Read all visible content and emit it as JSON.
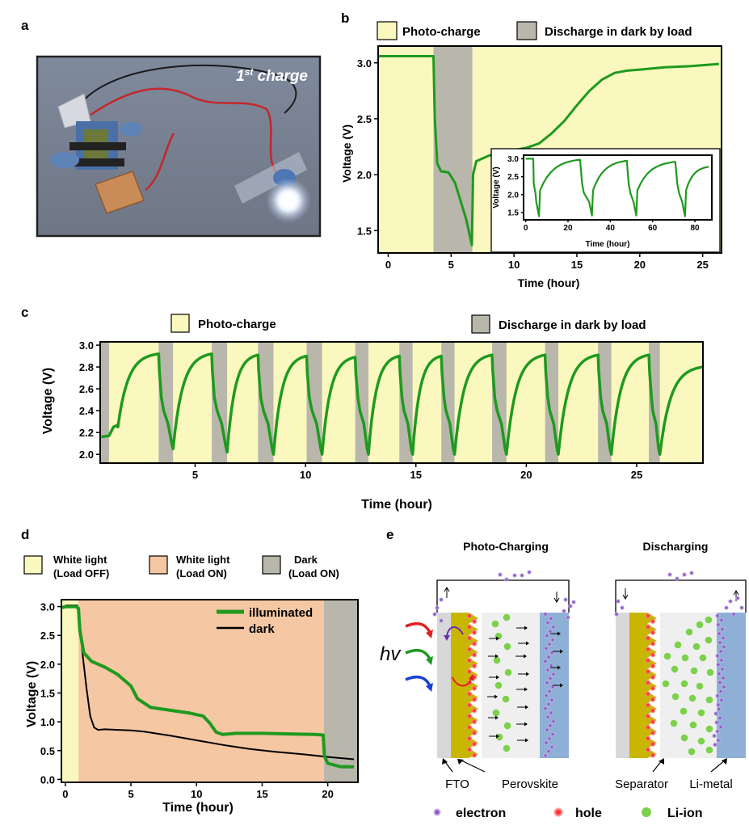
{
  "panel_labels": {
    "a": "a",
    "b": "b",
    "c": "c",
    "d": "d",
    "e": "e"
  },
  "panel_a": {
    "overlay_main": "1",
    "overlay_sup": "st",
    "overlay_rest": " charge"
  },
  "colors": {
    "photo_charge": "#fbf8bf",
    "discharge_dark": "#b9b7ac",
    "white_light_load_on": "#f5c7a3",
    "curve_green": "#1f9a1f",
    "curve_black": "#000000"
  },
  "chart_data": [
    {
      "panel": "b",
      "type": "line",
      "ylabel": "Voltage (V)",
      "xlabel": "Time (hour)",
      "xlim": [
        -0.8,
        26.5
      ],
      "ylim": [
        1.3,
        3.15
      ],
      "xticks": [
        0,
        5,
        10,
        15,
        20,
        25
      ],
      "yticks": [
        1.5,
        2.0,
        2.5,
        3.0
      ],
      "legend": [
        "Photo-charge",
        "Discharge in dark by load"
      ],
      "regions": [
        {
          "type": "photo",
          "x0": -0.8,
          "x1": 3.6
        },
        {
          "type": "dark",
          "x0": 3.6,
          "x1": 6.7
        },
        {
          "type": "photo",
          "x0": 6.7,
          "x1": 26.5
        }
      ],
      "series": [
        {
          "x": [
            -0.8,
            0,
            2,
            3.6,
            3.7,
            3.9,
            4.2,
            4.8,
            5.3,
            5.8,
            6.2,
            6.5,
            6.65,
            6.75,
            7,
            8,
            9,
            10,
            11,
            12,
            13,
            14,
            15,
            16,
            17,
            18,
            19,
            20,
            22,
            24,
            26.3
          ],
          "y": [
            3.06,
            3.06,
            3.06,
            3.06,
            2.5,
            2.1,
            2.03,
            2.02,
            1.93,
            1.75,
            1.6,
            1.45,
            1.37,
            2.0,
            2.12,
            2.17,
            2.2,
            2.22,
            2.24,
            2.28,
            2.37,
            2.48,
            2.62,
            2.75,
            2.85,
            2.91,
            2.93,
            2.94,
            2.96,
            2.97,
            2.99
          ]
        }
      ],
      "inset": {
        "xlabel": "Time (hour)",
        "ylabel": "Voltage (V)",
        "xlim": [
          -1,
          88
        ],
        "ylim": [
          1.3,
          3.1
        ],
        "xticks": [
          0,
          20,
          40,
          60,
          80
        ],
        "yticks": [
          1.5,
          2.0,
          2.5,
          3.0
        ],
        "cycles": [
          {
            "charge_start": 6.5,
            "charge_end": 26.5,
            "v_start": 1.4,
            "v_end": 2.98
          },
          {
            "charge_start": 31.5,
            "charge_end": 48.5,
            "v_start": 1.42,
            "v_end": 2.95
          },
          {
            "charge_start": 52.5,
            "charge_end": 71.5,
            "v_start": 1.42,
            "v_end": 2.92
          },
          {
            "charge_start": 75.5,
            "charge_end": 87,
            "v_start": 1.4,
            "v_end": 2.78
          }
        ]
      }
    },
    {
      "panel": "c",
      "type": "line",
      "ylabel": "Voltage (V)",
      "xlabel": "Time (hour)",
      "xlim": [
        0.7,
        28
      ],
      "ylim": [
        1.92,
        3.03
      ],
      "xticks": [
        5,
        10,
        15,
        20,
        25
      ],
      "yticks": [
        2.0,
        2.2,
        2.4,
        2.6,
        2.8,
        3.0
      ],
      "legend": [
        "Photo-charge",
        "Discharge in dark by load"
      ],
      "dark_intervals": [
        [
          0.7,
          1.1
        ],
        [
          3.35,
          4.0
        ],
        [
          5.75,
          6.45
        ],
        [
          7.85,
          8.55
        ],
        [
          10.05,
          10.75
        ],
        [
          12.25,
          12.85
        ],
        [
          14.25,
          14.85
        ],
        [
          16.15,
          16.75
        ],
        [
          18.45,
          19.1
        ],
        [
          20.85,
          21.45
        ],
        [
          23.25,
          23.85
        ],
        [
          25.55,
          26.05
        ]
      ],
      "cycles": [
        {
          "s": 1.1,
          "e": 3.35,
          "v0": 2.17,
          "v1": 2.92
        },
        {
          "s": 4.0,
          "e": 5.75,
          "v0": 2.05,
          "v1": 2.92
        },
        {
          "s": 6.45,
          "e": 7.85,
          "v0": 2.02,
          "v1": 2.91
        },
        {
          "s": 8.55,
          "e": 10.05,
          "v0": 2.0,
          "v1": 2.9
        },
        {
          "s": 10.75,
          "e": 12.25,
          "v0": 2.0,
          "v1": 2.89
        },
        {
          "s": 12.85,
          "e": 14.25,
          "v0": 2.0,
          "v1": 2.9
        },
        {
          "s": 14.85,
          "e": 16.15,
          "v0": 2.0,
          "v1": 2.9
        },
        {
          "s": 16.75,
          "e": 18.45,
          "v0": 2.0,
          "v1": 2.91
        },
        {
          "s": 19.1,
          "e": 20.85,
          "v0": 2.0,
          "v1": 2.91
        },
        {
          "s": 21.45,
          "e": 23.25,
          "v0": 2.0,
          "v1": 2.91
        },
        {
          "s": 23.85,
          "e": 25.55,
          "v0": 2.0,
          "v1": 2.91
        },
        {
          "s": 26.05,
          "e": 28.0,
          "v0": 2.0,
          "v1": 2.8
        }
      ]
    },
    {
      "panel": "d",
      "type": "line",
      "ylabel": "Voltage (V)",
      "xlabel": "Time (hour)",
      "xlim": [
        -0.3,
        22.3
      ],
      "ylim": [
        -0.05,
        3.12
      ],
      "xticks": [
        0,
        5,
        10,
        15,
        20
      ],
      "yticks": [
        0.0,
        0.5,
        1.0,
        1.5,
        2.0,
        2.5,
        3.0
      ],
      "legend_regions": [
        {
          "line1": "White light",
          "line2": "(Load OFF)"
        },
        {
          "line1": "White light",
          "line2": "(Load ON)"
        },
        {
          "line1": "Dark",
          "line2": "(Load ON)"
        }
      ],
      "regions": [
        {
          "type": "photo",
          "x0": -0.3,
          "x1": 1.0
        },
        {
          "type": "load_on",
          "x0": 1.0,
          "x1": 19.7
        },
        {
          "type": "dark",
          "x0": 19.7,
          "x1": 22.3
        }
      ],
      "series": [
        {
          "name": "illuminated",
          "x": [
            -0.3,
            0,
            0.8,
            1.0,
            1.1,
            1.4,
            2.0,
            3.0,
            4.0,
            4.5,
            5.0,
            5.5,
            6.5,
            8.0,
            9.5,
            10.5,
            11.0,
            11.5,
            12.0,
            13.0,
            15.0,
            17.0,
            19.0,
            19.65,
            19.75,
            20.0,
            21.0,
            22.0
          ],
          "y": [
            2.98,
            3.0,
            3.0,
            2.97,
            2.6,
            2.2,
            2.05,
            1.95,
            1.82,
            1.72,
            1.62,
            1.4,
            1.25,
            1.2,
            1.15,
            1.1,
            0.98,
            0.82,
            0.78,
            0.8,
            0.8,
            0.79,
            0.78,
            0.77,
            0.4,
            0.28,
            0.22,
            0.22
          ]
        },
        {
          "name": "dark",
          "x": [
            0,
            0.9,
            1.05,
            1.3,
            1.6,
            1.9,
            2.2,
            2.5,
            3.0,
            4.0,
            5.0,
            6.0,
            8.0,
            10.0,
            12.0,
            14.0,
            16.0,
            18.0,
            20.0,
            22.0
          ],
          "y": [
            3.02,
            3.02,
            2.9,
            2.2,
            1.6,
            1.1,
            0.9,
            0.86,
            0.87,
            0.86,
            0.85,
            0.83,
            0.76,
            0.68,
            0.6,
            0.53,
            0.48,
            0.44,
            0.39,
            0.35
          ]
        }
      ]
    }
  ],
  "panel_e": {
    "hv": "hv",
    "titles": {
      "left": "Photo-Charging",
      "right": "Discharging"
    },
    "labels": {
      "fto": "FTO",
      "perovskite": "Perovskite",
      "separator": "Separator",
      "li_metal": "Li-metal"
    },
    "legend": {
      "electron": "electron",
      "hole": "hole",
      "li_ion": "Li-ion"
    }
  }
}
